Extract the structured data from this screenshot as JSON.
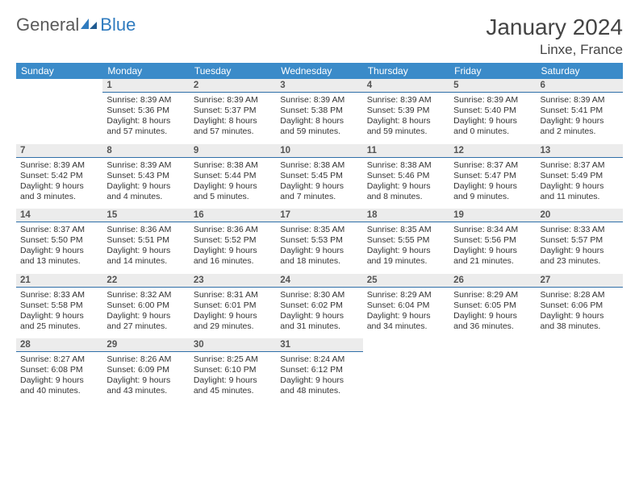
{
  "logo": {
    "part1": "General",
    "part2": "Blue"
  },
  "title": "January 2024",
  "location": "Linxe, France",
  "colors": {
    "header_blue": "#3b8bc9",
    "rule_blue": "#2f6fa8",
    "gray_bg": "#ececec",
    "text_dark": "#333333",
    "text_mid": "#555555",
    "logo_gray": "#5a5a5a",
    "logo_blue": "#2f7bbf"
  },
  "dow": [
    "Sunday",
    "Monday",
    "Tuesday",
    "Wednesday",
    "Thursday",
    "Friday",
    "Saturday"
  ],
  "weeks": [
    {
      "nums": [
        "",
        "1",
        "2",
        "3",
        "4",
        "5",
        "6"
      ],
      "cells": [
        null,
        {
          "sunrise": "8:39 AM",
          "sunset": "5:36 PM",
          "daylight": "8 hours and 57 minutes."
        },
        {
          "sunrise": "8:39 AM",
          "sunset": "5:37 PM",
          "daylight": "8 hours and 57 minutes."
        },
        {
          "sunrise": "8:39 AM",
          "sunset": "5:38 PM",
          "daylight": "8 hours and 59 minutes."
        },
        {
          "sunrise": "8:39 AM",
          "sunset": "5:39 PM",
          "daylight": "8 hours and 59 minutes."
        },
        {
          "sunrise": "8:39 AM",
          "sunset": "5:40 PM",
          "daylight": "9 hours and 0 minutes."
        },
        {
          "sunrise": "8:39 AM",
          "sunset": "5:41 PM",
          "daylight": "9 hours and 2 minutes."
        }
      ]
    },
    {
      "nums": [
        "7",
        "8",
        "9",
        "10",
        "11",
        "12",
        "13"
      ],
      "cells": [
        {
          "sunrise": "8:39 AM",
          "sunset": "5:42 PM",
          "daylight": "9 hours and 3 minutes."
        },
        {
          "sunrise": "8:39 AM",
          "sunset": "5:43 PM",
          "daylight": "9 hours and 4 minutes."
        },
        {
          "sunrise": "8:38 AM",
          "sunset": "5:44 PM",
          "daylight": "9 hours and 5 minutes."
        },
        {
          "sunrise": "8:38 AM",
          "sunset": "5:45 PM",
          "daylight": "9 hours and 7 minutes."
        },
        {
          "sunrise": "8:38 AM",
          "sunset": "5:46 PM",
          "daylight": "9 hours and 8 minutes."
        },
        {
          "sunrise": "8:37 AM",
          "sunset": "5:47 PM",
          "daylight": "9 hours and 9 minutes."
        },
        {
          "sunrise": "8:37 AM",
          "sunset": "5:49 PM",
          "daylight": "9 hours and 11 minutes."
        }
      ]
    },
    {
      "nums": [
        "14",
        "15",
        "16",
        "17",
        "18",
        "19",
        "20"
      ],
      "cells": [
        {
          "sunrise": "8:37 AM",
          "sunset": "5:50 PM",
          "daylight": "9 hours and 13 minutes."
        },
        {
          "sunrise": "8:36 AM",
          "sunset": "5:51 PM",
          "daylight": "9 hours and 14 minutes."
        },
        {
          "sunrise": "8:36 AM",
          "sunset": "5:52 PM",
          "daylight": "9 hours and 16 minutes."
        },
        {
          "sunrise": "8:35 AM",
          "sunset": "5:53 PM",
          "daylight": "9 hours and 18 minutes."
        },
        {
          "sunrise": "8:35 AM",
          "sunset": "5:55 PM",
          "daylight": "9 hours and 19 minutes."
        },
        {
          "sunrise": "8:34 AM",
          "sunset": "5:56 PM",
          "daylight": "9 hours and 21 minutes."
        },
        {
          "sunrise": "8:33 AM",
          "sunset": "5:57 PM",
          "daylight": "9 hours and 23 minutes."
        }
      ]
    },
    {
      "nums": [
        "21",
        "22",
        "23",
        "24",
        "25",
        "26",
        "27"
      ],
      "cells": [
        {
          "sunrise": "8:33 AM",
          "sunset": "5:58 PM",
          "daylight": "9 hours and 25 minutes."
        },
        {
          "sunrise": "8:32 AM",
          "sunset": "6:00 PM",
          "daylight": "9 hours and 27 minutes."
        },
        {
          "sunrise": "8:31 AM",
          "sunset": "6:01 PM",
          "daylight": "9 hours and 29 minutes."
        },
        {
          "sunrise": "8:30 AM",
          "sunset": "6:02 PM",
          "daylight": "9 hours and 31 minutes."
        },
        {
          "sunrise": "8:29 AM",
          "sunset": "6:04 PM",
          "daylight": "9 hours and 34 minutes."
        },
        {
          "sunrise": "8:29 AM",
          "sunset": "6:05 PM",
          "daylight": "9 hours and 36 minutes."
        },
        {
          "sunrise": "8:28 AM",
          "sunset": "6:06 PM",
          "daylight": "9 hours and 38 minutes."
        }
      ]
    },
    {
      "nums": [
        "28",
        "29",
        "30",
        "31",
        "",
        "",
        ""
      ],
      "cells": [
        {
          "sunrise": "8:27 AM",
          "sunset": "6:08 PM",
          "daylight": "9 hours and 40 minutes."
        },
        {
          "sunrise": "8:26 AM",
          "sunset": "6:09 PM",
          "daylight": "9 hours and 43 minutes."
        },
        {
          "sunrise": "8:25 AM",
          "sunset": "6:10 PM",
          "daylight": "9 hours and 45 minutes."
        },
        {
          "sunrise": "8:24 AM",
          "sunset": "6:12 PM",
          "daylight": "9 hours and 48 minutes."
        },
        null,
        null,
        null
      ]
    }
  ],
  "labels": {
    "sunrise": "Sunrise: ",
    "sunset": "Sunset: ",
    "daylight": "Daylight: "
  }
}
